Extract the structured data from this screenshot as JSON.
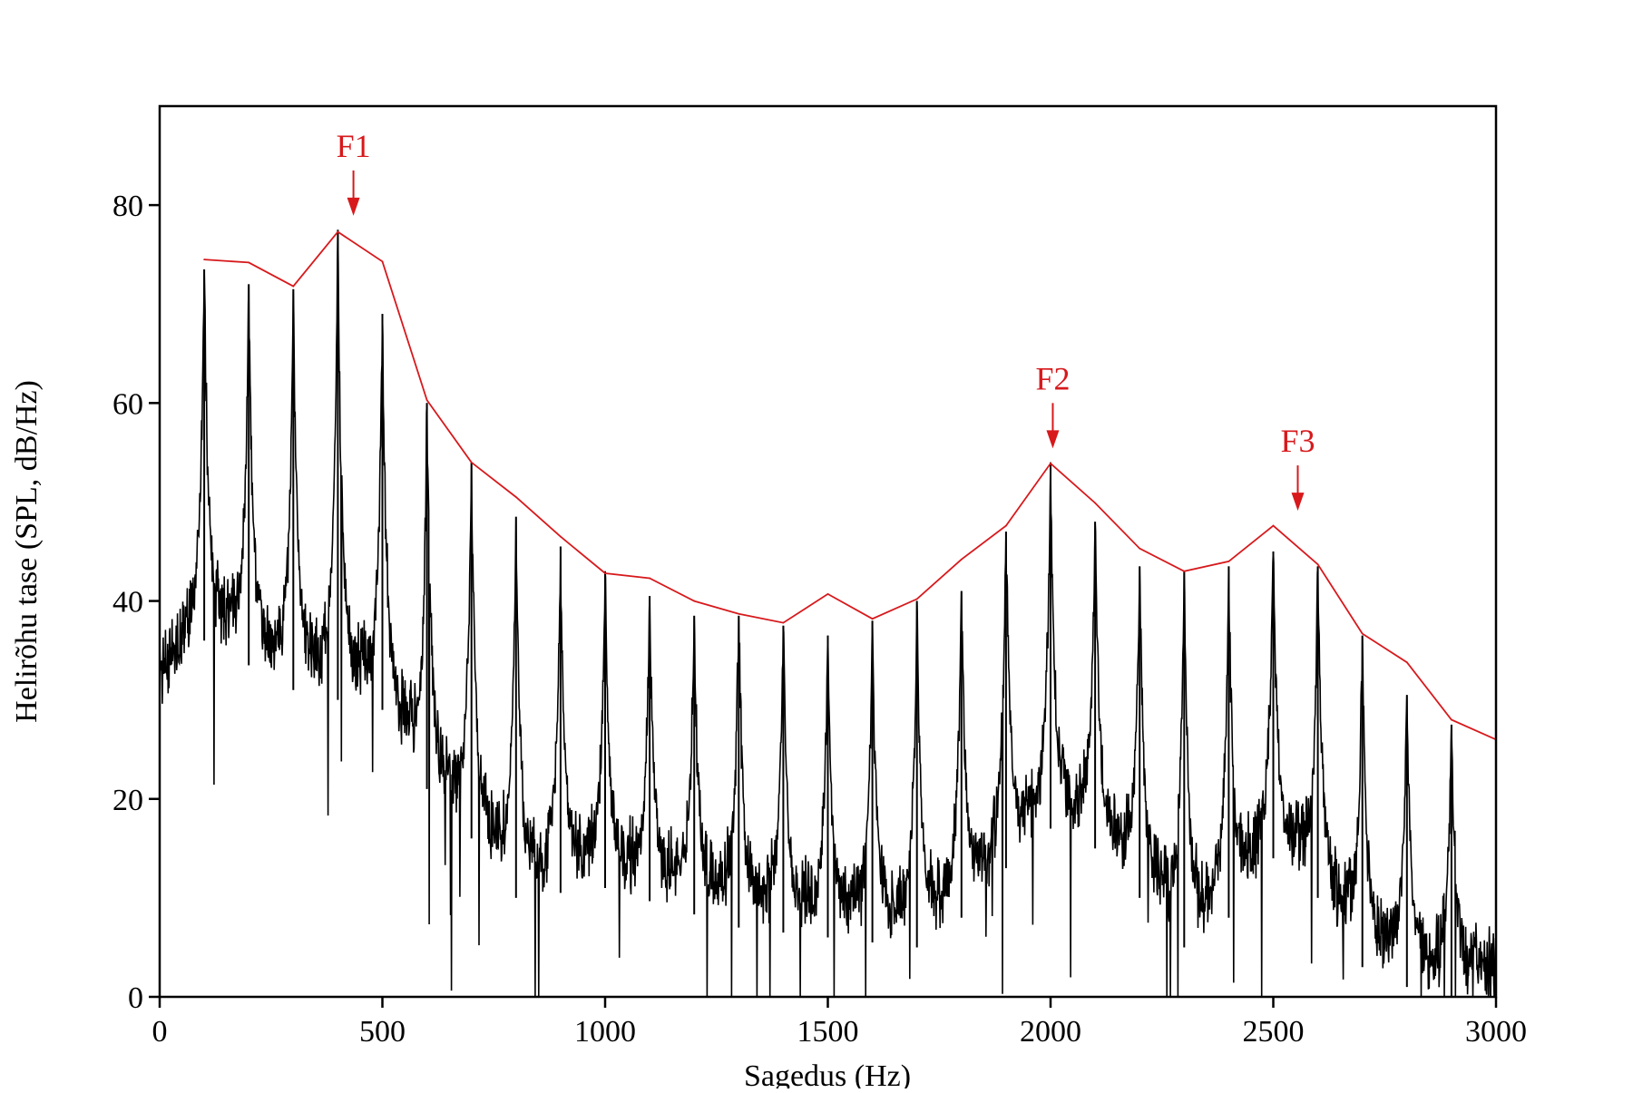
{
  "chart_data": {
    "type": "line",
    "title": "",
    "xlabel": "Sagedus (Hz)",
    "ylabel": "Helirõhu tase (SPL, dB/Hz)",
    "xlim": [
      0,
      3000
    ],
    "ylim": [
      0,
      90
    ],
    "x_ticks": [
      0,
      500,
      1000,
      1500,
      2000,
      2500,
      3000
    ],
    "y_ticks": [
      0,
      20,
      40,
      60,
      80
    ],
    "grid": false,
    "legend": "none",
    "colors": {
      "spectrum": "#000000",
      "envelope": "#d7191c",
      "formants": "#d7191c"
    },
    "series": [
      {
        "role": "harmonic-peaks",
        "color": "#000000",
        "x": [
          100,
          200,
          300,
          400,
          500,
          600,
          700,
          800,
          900,
          1000,
          1100,
          1200,
          1300,
          1400,
          1500,
          1600,
          1700,
          1800,
          1900,
          2000,
          2100,
          2200,
          2300,
          2400,
          2500,
          2600,
          2700,
          2800,
          2900
        ],
        "y": [
          73.5,
          72,
          71.5,
          77.5,
          69,
          60,
          54,
          48.5,
          45.5,
          43,
          40.5,
          38.5,
          38.5,
          37.5,
          36.5,
          38,
          40,
          41,
          47,
          54,
          48,
          43.5,
          43,
          43.5,
          45,
          43.5,
          36.5,
          30.5,
          27.5
        ]
      },
      {
        "role": "spectral-envelope",
        "color": "#d7191c",
        "x": [
          100,
          200,
          300,
          400,
          500,
          600,
          700,
          800,
          900,
          1000,
          1100,
          1200,
          1300,
          1400,
          1500,
          1600,
          1700,
          1800,
          1900,
          2000,
          2100,
          2200,
          2300,
          2400,
          2500,
          2600,
          2700,
          2800,
          2900,
          3000
        ],
        "y": [
          74.5,
          74.2,
          71.8,
          77.3,
          74.3,
          60.3,
          54,
          50.5,
          46.5,
          42.8,
          42.3,
          40,
          38.7,
          37.8,
          40.7,
          38.2,
          40.2,
          44.2,
          47.6,
          53.9,
          49.9,
          45.3,
          43,
          44,
          47.6,
          43.7,
          36.7,
          33.8,
          28,
          26
        ]
      }
    ],
    "annotations": [
      {
        "label": "F1",
        "x": 435,
        "y": 78
      },
      {
        "label": "F2",
        "x": 2005,
        "y": 54.5
      },
      {
        "label": "F3",
        "x": 2555,
        "y": 48.2
      }
    ]
  }
}
